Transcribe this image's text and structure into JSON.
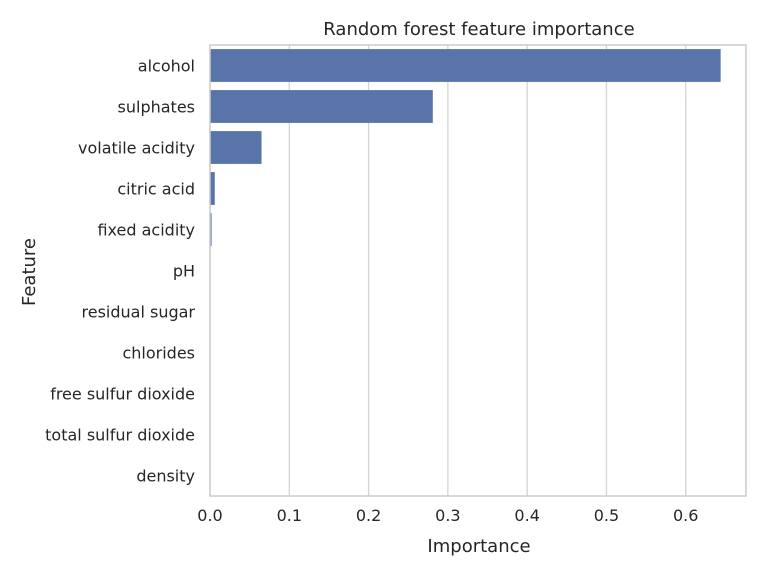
{
  "chart_data": {
    "type": "bar",
    "orientation": "horizontal",
    "title": "Random forest feature importance",
    "xlabel": "Importance",
    "ylabel": "Feature",
    "categories": [
      "alcohol",
      "sulphates",
      "volatile acidity",
      "citric acid",
      "fixed acidity",
      "pH",
      "residual sugar",
      "chlorides",
      "free sulfur dioxide",
      "total sulfur dioxide",
      "density"
    ],
    "values": [
      0.644,
      0.281,
      0.065,
      0.006,
      0.002,
      0.0,
      0.0,
      0.0,
      0.0,
      0.0,
      0.0
    ],
    "xlim": [
      0,
      0.676
    ],
    "xticks": [
      0.0,
      0.1,
      0.2,
      0.3,
      0.4,
      0.5,
      0.6
    ],
    "grid": "vertical",
    "bar_color": "#5874a8",
    "grid_color": "#d4d4d4",
    "spine_color": "#cccccc"
  }
}
